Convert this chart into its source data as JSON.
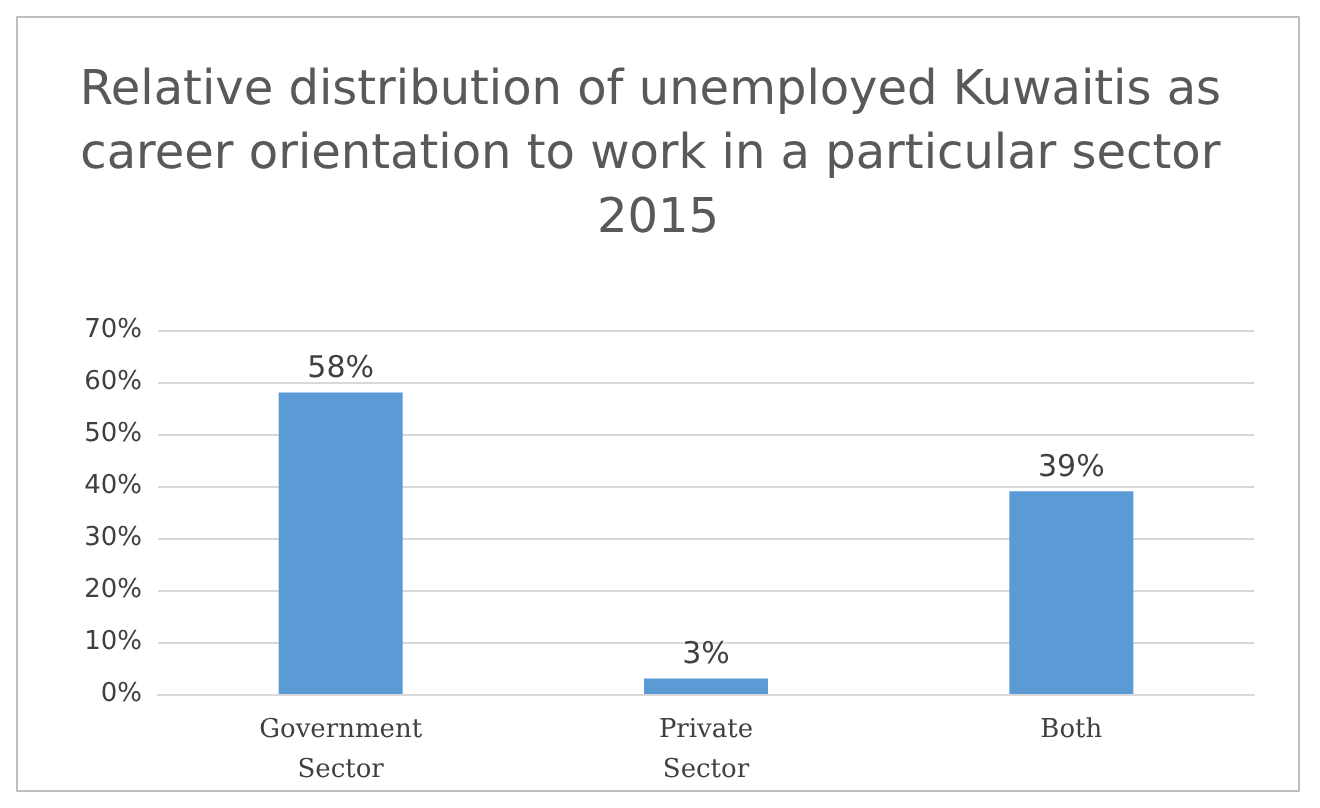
{
  "chart_data": {
    "type": "bar",
    "title": "Relative distribution of unemployed Kuwaitis as career orientation to work in a particular sector 2015",
    "categories": [
      "Government Sector",
      "Private Sector",
      "Both"
    ],
    "values": [
      58,
      3,
      39
    ],
    "value_labels": [
      "58%",
      "3%",
      "39%"
    ],
    "color": "#5b9bd5",
    "ylim": [
      0,
      70
    ],
    "yticks": [
      {
        "value": 0,
        "label": "0%"
      },
      {
        "value": 10,
        "label": "10%"
      },
      {
        "value": 20,
        "label": "20%"
      },
      {
        "value": 30,
        "label": "30%"
      },
      {
        "value": 40,
        "label": "40%"
      },
      {
        "value": 50,
        "label": "50%"
      },
      {
        "value": 60,
        "label": "60%"
      },
      {
        "value": 70,
        "label": "70%"
      }
    ],
    "grid": "y"
  }
}
